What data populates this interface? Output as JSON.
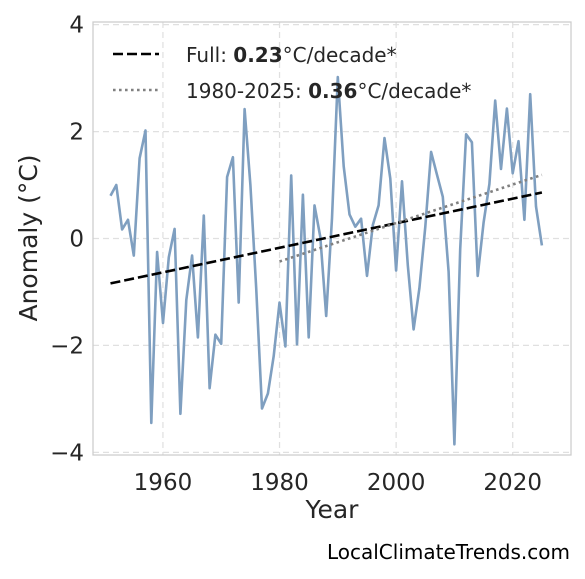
{
  "chart_data": {
    "type": "line",
    "xlabel": "Year",
    "ylabel": "Anomaly (°C)",
    "xlim": [
      1948,
      2030
    ],
    "ylim": [
      -4.05,
      4.05
    ],
    "x_ticks": [
      1960,
      1980,
      2000,
      2020
    ],
    "y_ticks": [
      -4,
      -2,
      0,
      2,
      4
    ],
    "y_tick_labels": [
      "−4",
      "−2",
      "0",
      "2",
      "4"
    ],
    "grid": true,
    "legend_position": "top-left",
    "series": [
      {
        "kind": "data",
        "color": "#7f9fc0",
        "x": [
          1951,
          1952,
          1953,
          1954,
          1955,
          1956,
          1957,
          1958,
          1959,
          1960,
          1961,
          1962,
          1963,
          1964,
          1965,
          1966,
          1967,
          1968,
          1969,
          1970,
          1971,
          1972,
          1973,
          1974,
          1975,
          1976,
          1977,
          1978,
          1979,
          1980,
          1981,
          1982,
          1983,
          1984,
          1985,
          1986,
          1987,
          1988,
          1989,
          1990,
          1991,
          1992,
          1993,
          1994,
          1995,
          1996,
          1997,
          1998,
          1999,
          2000,
          2001,
          2002,
          2003,
          2004,
          2005,
          2006,
          2007,
          2008,
          2009,
          2010,
          2011,
          2012,
          2013,
          2014,
          2015,
          2016,
          2017,
          2018,
          2019,
          2020,
          2021,
          2022,
          2023,
          2024,
          2025
        ],
        "y": [
          0.8,
          1.0,
          0.17,
          0.35,
          -0.32,
          1.5,
          2.02,
          -3.45,
          -0.25,
          -1.58,
          -0.35,
          0.18,
          -3.28,
          -1.15,
          -0.32,
          -1.85,
          0.43,
          -2.8,
          -1.8,
          -1.97,
          1.15,
          1.52,
          -1.2,
          2.42,
          1.0,
          -0.93,
          -3.18,
          -2.9,
          -2.2,
          -1.2,
          -2.02,
          1.18,
          -1.98,
          0.82,
          -1.85,
          0.62,
          0.03,
          -1.45,
          0.38,
          3.02,
          1.35,
          0.45,
          0.22,
          0.37,
          -0.7,
          0.25,
          0.62,
          1.88,
          1.12,
          -0.6,
          1.07,
          -0.5,
          -1.7,
          -0.93,
          0.22,
          1.62,
          1.2,
          0.78,
          -0.62,
          -3.85,
          -0.2,
          1.95,
          1.8,
          -0.7,
          0.3,
          1.02,
          2.58,
          1.3,
          2.43,
          1.22,
          1.82,
          0.35,
          2.7,
          0.6,
          -0.13
        ]
      },
      {
        "kind": "trend",
        "style": "dashed",
        "color": "#000000",
        "x": [
          1951,
          2025
        ],
        "y": [
          -0.84,
          0.86
        ]
      },
      {
        "kind": "trend",
        "style": "dotted",
        "color": "#808080",
        "x": [
          1980,
          2025
        ],
        "y": [
          -0.43,
          1.19
        ]
      }
    ],
    "legend": [
      {
        "prefix": "Full: ",
        "value": "0.23",
        "suffix": "°C/decade*",
        "style": "dashed",
        "color": "#000000"
      },
      {
        "prefix": "1980-2025: ",
        "value": "0.36",
        "suffix": "°C/decade*",
        "style": "dotted",
        "color": "#808080"
      }
    ]
  },
  "watermark": "LocalClimateTrends.com"
}
